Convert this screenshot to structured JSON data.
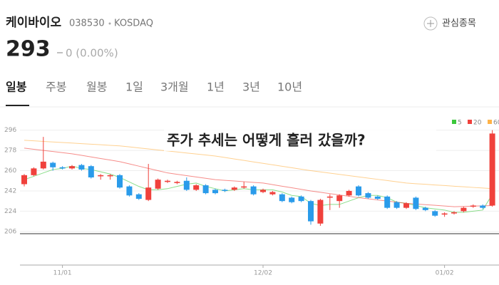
{
  "header": {
    "name": "케이바이오",
    "code": "038530",
    "market": "KOSDAQ",
    "watch": "관심종목",
    "price": "293",
    "change": "0 (0.00%)"
  },
  "tabs": [
    "일봉",
    "주봉",
    "월봉",
    "1일",
    "3개월",
    "1년",
    "3년",
    "10년"
  ],
  "chart_data": {
    "type": "candlestick",
    "annotation": "주가 추세는 어떻게 흘러 갔을까?",
    "categories": [
      null,
      null,
      null,
      null,
      "11/01",
      null,
      null,
      null,
      null,
      null,
      null,
      null,
      null,
      null,
      null,
      null,
      null,
      null,
      null,
      null,
      null,
      null,
      null,
      null,
      null,
      "12/02",
      null,
      null,
      null,
      null,
      null,
      null,
      null,
      null,
      null,
      null,
      null,
      null,
      null,
      null,
      null,
      null,
      null,
      null,
      "01/02",
      null,
      null,
      null,
      null,
      null
    ],
    "open": [
      248,
      256,
      262,
      267,
      263,
      262,
      265,
      264,
      255,
      255,
      256,
      246,
      239,
      234,
      244,
      250,
      249,
      251,
      243,
      247,
      243,
      243,
      243,
      245,
      246,
      241,
      239,
      239,
      236,
      237,
      233,
      213,
      236,
      233,
      238,
      246,
      240,
      237,
      237,
      232,
      227,
      236,
      227,
      224,
      221,
      222,
      224,
      228,
      229,
      229
    ],
    "high": [
      257,
      263,
      290,
      268,
      264,
      265,
      266,
      265,
      257,
      257,
      257,
      247,
      240,
      266,
      253,
      252,
      251,
      254,
      248,
      248,
      244,
      244,
      246,
      250,
      247,
      244,
      242,
      240,
      237,
      238,
      234,
      235,
      239,
      239,
      243,
      247,
      241,
      238,
      238,
      233,
      232,
      237,
      228,
      225,
      223,
      224,
      228,
      230,
      230,
      296
    ],
    "low": [
      246,
      255,
      261,
      260,
      261,
      261,
      260,
      253,
      252,
      252,
      244,
      237,
      234,
      233,
      243,
      249,
      248,
      242,
      242,
      239,
      239,
      241,
      242,
      244,
      238,
      240,
      238,
      232,
      231,
      232,
      212,
      211,
      225,
      227,
      237,
      237,
      235,
      234,
      226,
      226,
      226,
      225,
      224,
      219,
      219,
      221,
      223,
      227,
      226,
      228
    ],
    "close": [
      256,
      262,
      268,
      263,
      262,
      264,
      261,
      254,
      256,
      256,
      245,
      238,
      235,
      245,
      252,
      251,
      250,
      243,
      247,
      240,
      240,
      242,
      245,
      246,
      239,
      243,
      241,
      233,
      232,
      233,
      215,
      234,
      237,
      238,
      242,
      238,
      236,
      235,
      227,
      227,
      231,
      226,
      225,
      220,
      222,
      223,
      227,
      229,
      227,
      293
    ],
    "up_color": "#f0413c",
    "down_color": "#2a9bea",
    "series": [
      {
        "name": "5",
        "color": "#3cc83c",
        "values": [
          252,
          255,
          258,
          261,
          262,
          264,
          262,
          261,
          259,
          257,
          254,
          250,
          246,
          243,
          243,
          244,
          246,
          248,
          249,
          246,
          244,
          242,
          243,
          244,
          243,
          243,
          243,
          241,
          238,
          237,
          231,
          229,
          230,
          230,
          233,
          236,
          238,
          238,
          236,
          232,
          231,
          229,
          227,
          226,
          225,
          223,
          223,
          224,
          225,
          239
        ]
      },
      {
        "name": "20",
        "color": "#f0413c",
        "values": [
          280,
          279,
          278,
          277,
          276,
          275,
          273.6,
          272.2,
          270.8,
          269.4,
          268,
          266,
          264,
          262,
          260,
          258,
          256.8,
          255.6,
          254.4,
          253.2,
          252,
          251.4,
          250.8,
          250.2,
          249.6,
          249,
          247.6,
          246.2,
          244.8,
          243.4,
          242,
          240.8,
          239.6,
          238.4,
          237.2,
          236,
          235,
          234,
          233,
          232,
          231,
          230.4,
          229.8,
          229.2,
          228.6,
          228,
          228.2,
          228.5,
          228.8,
          229
        ]
      },
      {
        "name": "60",
        "color": "#ffb347",
        "values": [
          287,
          286.5,
          286,
          285.5,
          285,
          284.5,
          284,
          283.5,
          283,
          282.5,
          282,
          281.1,
          280.2,
          279.3,
          278.4,
          277.5,
          276.6,
          275.7,
          274.8,
          273.9,
          273,
          271.7,
          270.4,
          269.1,
          267.8,
          266.5,
          265.2,
          263.9,
          262.6,
          261.3,
          260,
          258.9,
          257.8,
          256.7,
          255.6,
          254.5,
          253.4,
          252.3,
          251.2,
          250.1,
          249,
          248.4,
          247.9,
          247.3,
          246.8,
          246.2,
          245.7,
          245.1,
          244.6,
          244
        ]
      }
    ],
    "ylim": [
      204,
      304
    ],
    "yticks": [
      206,
      224,
      242,
      260,
      278,
      296
    ],
    "grid": true,
    "legend": "top-right"
  }
}
